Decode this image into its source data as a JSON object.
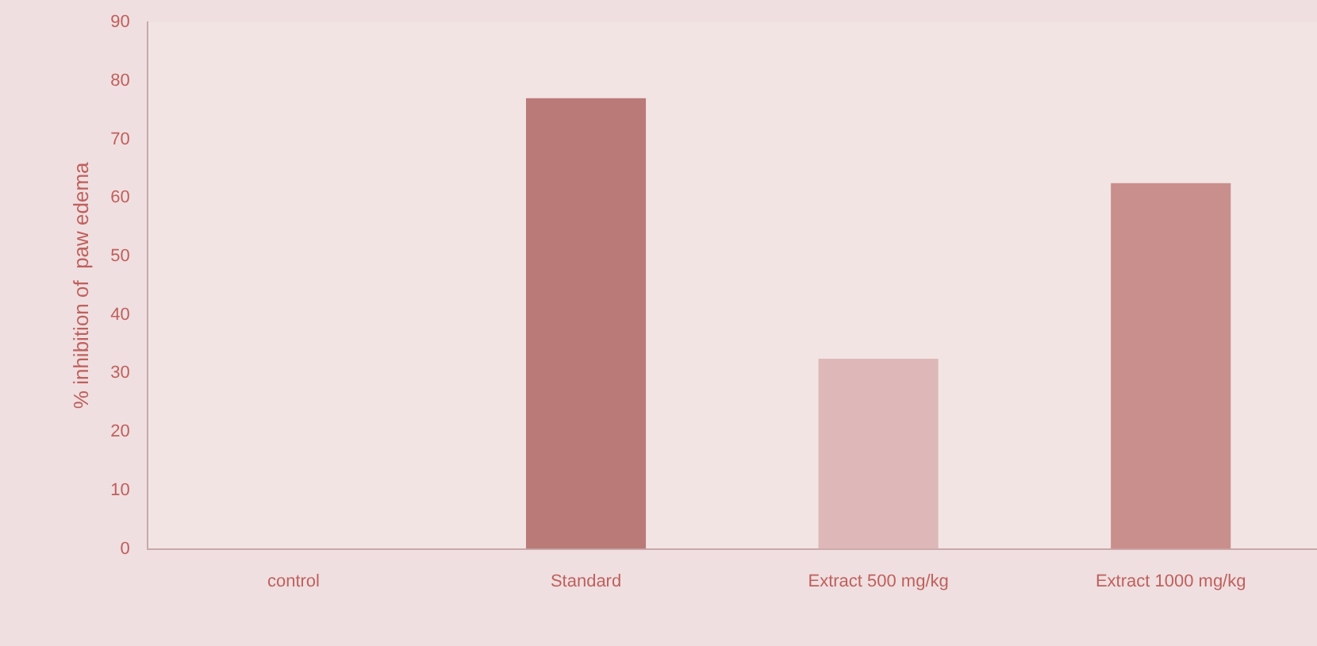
{
  "chart_data": {
    "type": "bar",
    "ylabel": "% inhibition of  paw edema",
    "categories": [
      "control",
      "Standard",
      "Extract 500 mg/kg",
      "Extract 1000 mg/kg"
    ],
    "values": [
      0,
      77,
      32.5,
      62.5
    ],
    "colors": [
      "#b97a78",
      "#b97a78",
      "#deb8b8",
      "#c98f8d"
    ],
    "ylim": [
      0,
      90
    ],
    "yticks": [
      0,
      10,
      20,
      30,
      40,
      50,
      60,
      70,
      80,
      90
    ],
    "grid": false,
    "legend": false
  }
}
